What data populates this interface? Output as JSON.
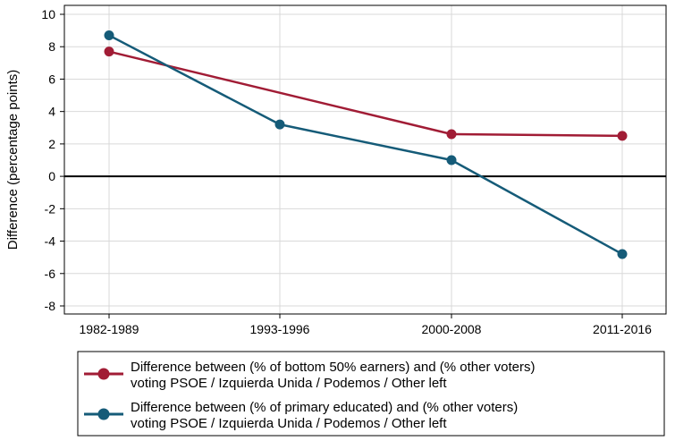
{
  "chart_data": {
    "type": "line",
    "title": "",
    "xlabel": "",
    "ylabel": "Difference (percentage points)",
    "categories": [
      "1982-1989",
      "1993-1996",
      "2000-2008",
      "2011-2016"
    ],
    "ylim": [
      -8,
      10
    ],
    "yticks": [
      -8,
      -6,
      -4,
      -2,
      0,
      2,
      4,
      6,
      8,
      10
    ],
    "grid": true,
    "zero_line": true,
    "legend_position": "bottom",
    "series": [
      {
        "name": "Difference between (% of bottom 50% earners) and (% other voters) voting PSOE / Izquierda Unida / Podemos / Other left",
        "legend_lines": [
          "Difference between (% of bottom 50% earners) and (% other voters)",
          "voting PSOE / Izquierda Unida / Podemos / Other left"
        ],
        "color": "#a11c35",
        "values": [
          7.7,
          null,
          2.6,
          2.5
        ]
      },
      {
        "name": "Difference between (% of primary educated) and (% other voters) voting PSOE / Izquierda Unida / Podemos / Other left",
        "legend_lines": [
          "Difference between (% of primary educated) and (% other voters)",
          "voting PSOE / Izquierda Unida / Podemos / Other left"
        ],
        "color": "#155b78",
        "values": [
          8.7,
          3.2,
          1.0,
          -4.8
        ]
      }
    ]
  }
}
